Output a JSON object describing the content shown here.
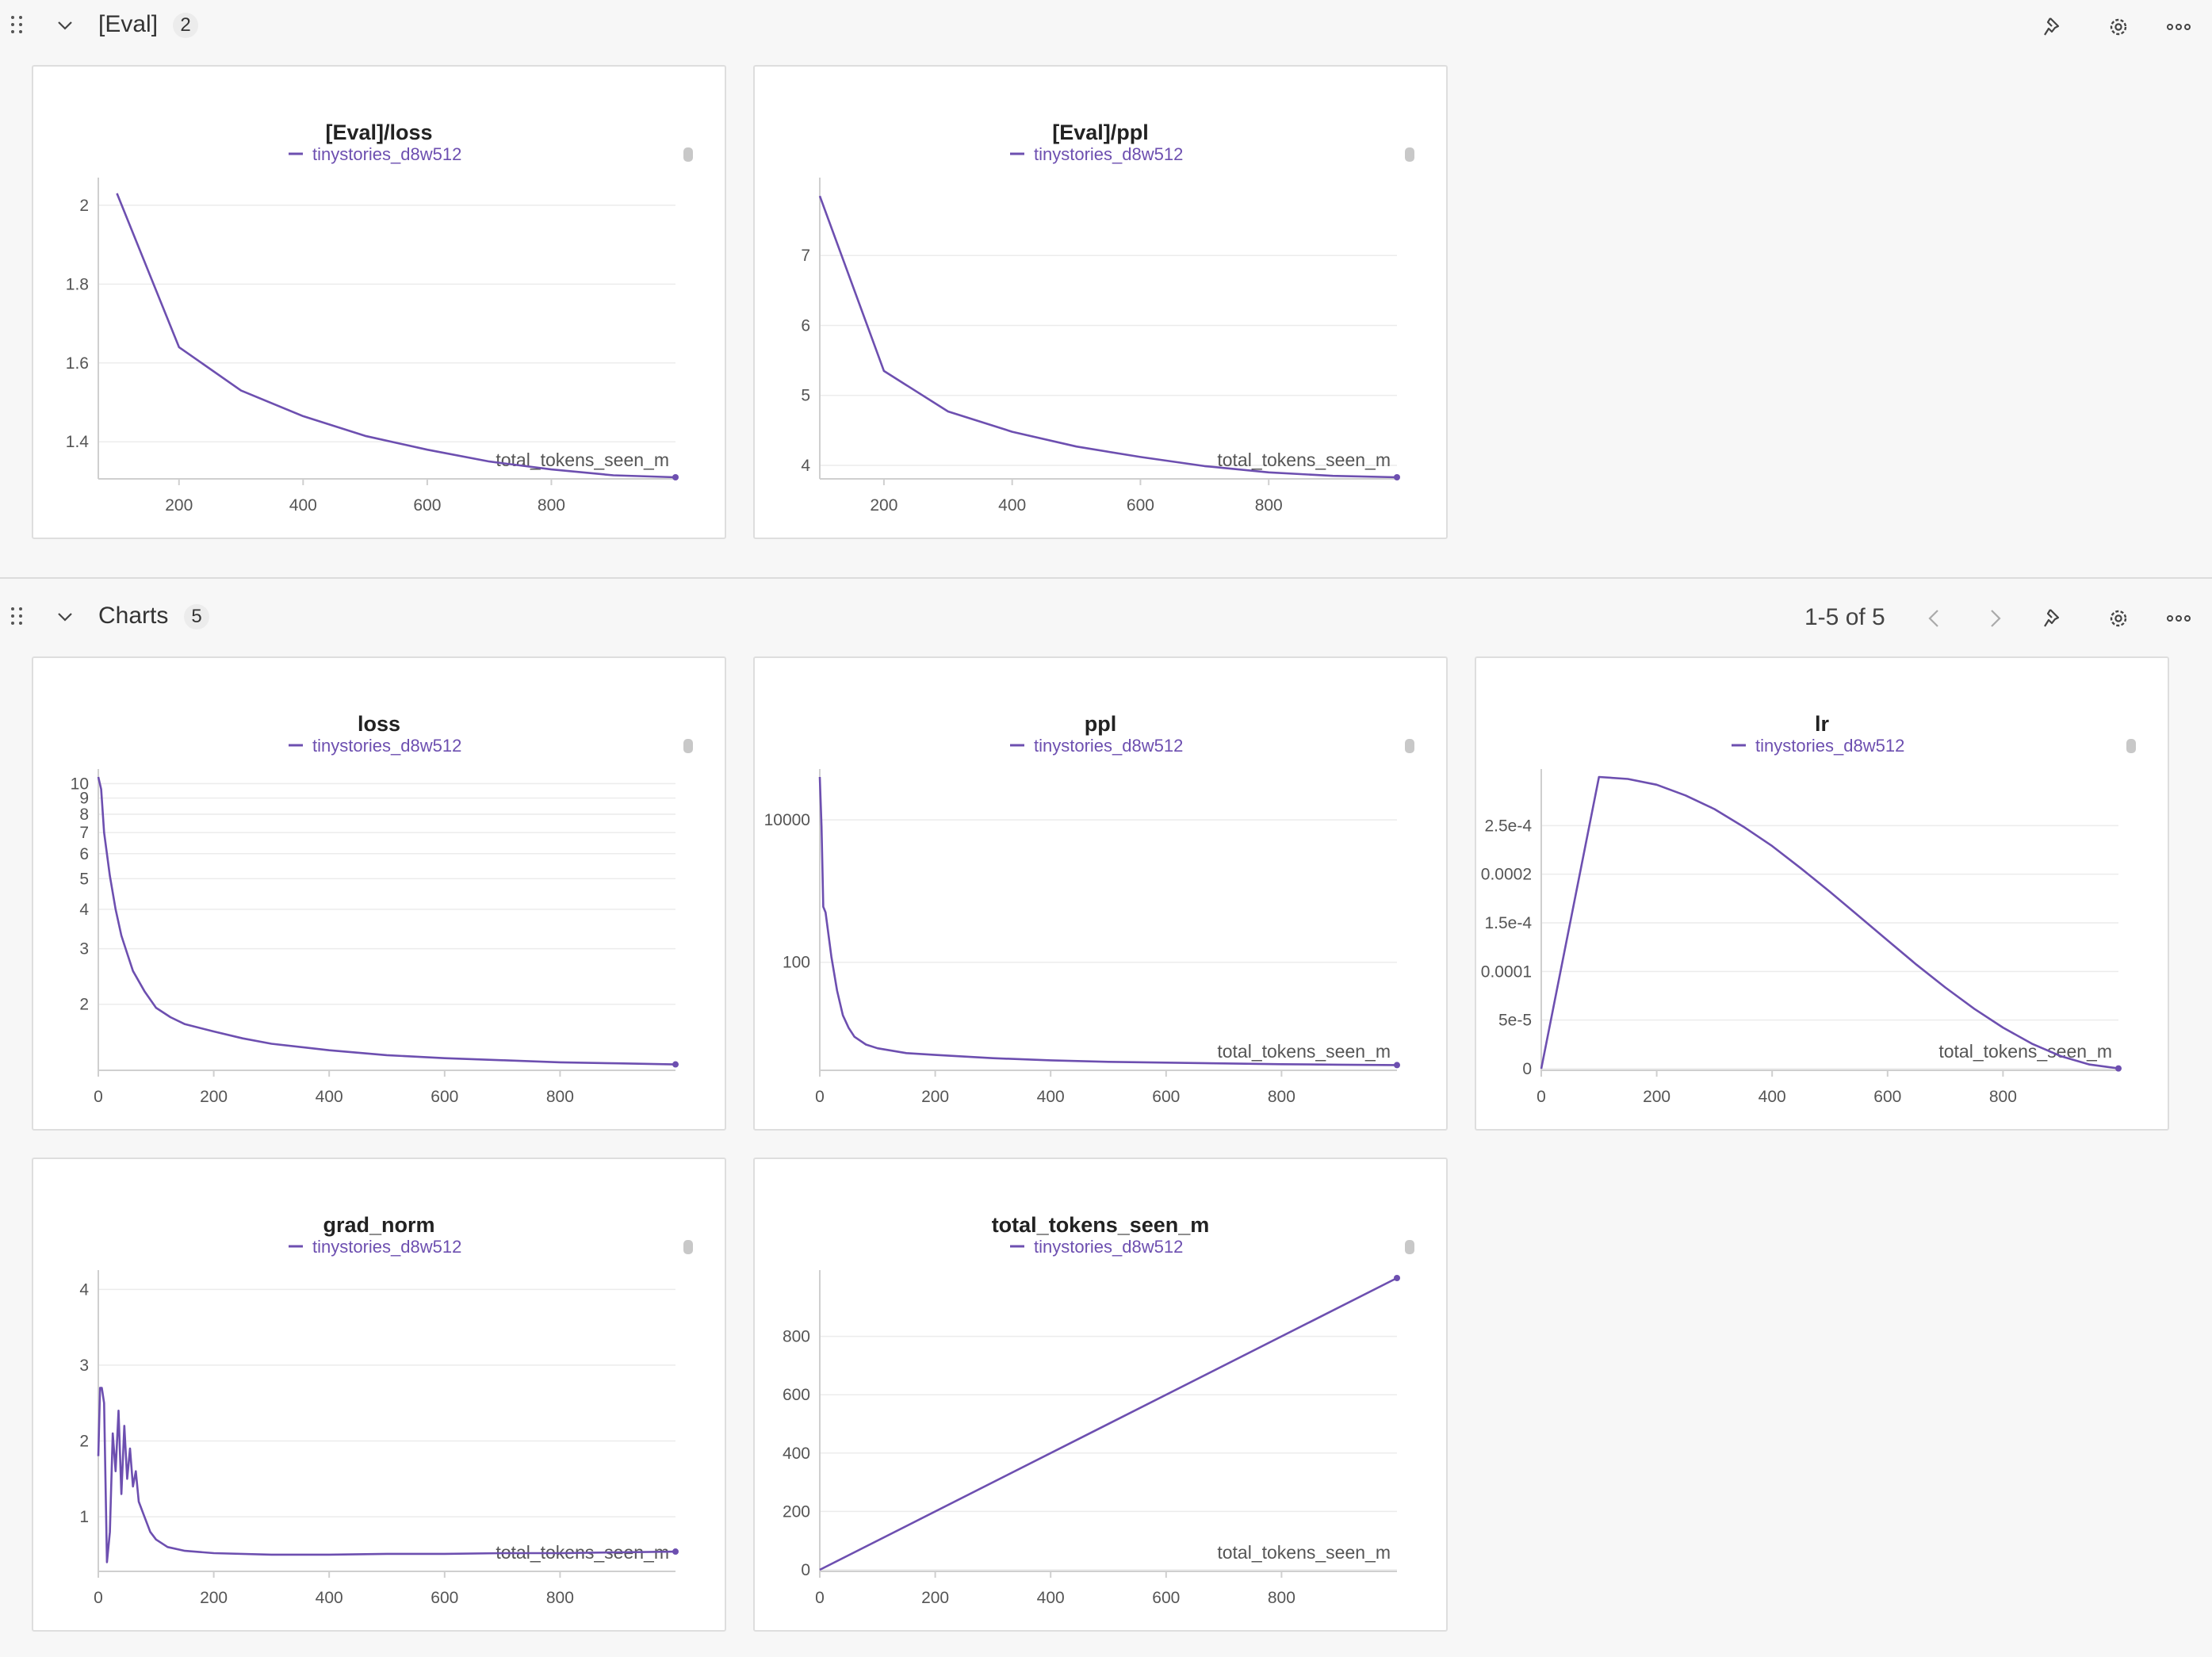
{
  "sections": [
    {
      "title": "[Eval]",
      "count": "2"
    },
    {
      "title": "Charts",
      "count": "5",
      "pager": "1-5 of 5"
    }
  ],
  "legend": "tinystories_d8w512",
  "xlabel": "total_tokens_seen_m",
  "colors": {
    "series": "#6d4fb0",
    "grid": "#ececec",
    "axis": "#cfcfcf"
  },
  "icons": [
    "drag-handle-icon",
    "chevron-down-icon",
    "pin-icon",
    "gear-icon",
    "more-icon",
    "chevron-left-icon",
    "chevron-right-icon"
  ],
  "chart_data": [
    {
      "type": "line",
      "title": "[Eval]/loss",
      "xlabel": "total_tokens_seen_m",
      "ylabel": "",
      "x": [
        100,
        200,
        300,
        400,
        500,
        600,
        700,
        800,
        900,
        1000
      ],
      "series": [
        {
          "name": "tinystories_d8w512",
          "values": [
            2.03,
            1.64,
            1.53,
            1.465,
            1.415,
            1.38,
            1.35,
            1.33,
            1.315,
            1.31
          ]
        }
      ],
      "xlim": [
        70,
        1000
      ],
      "ylim": [
        1.31,
        2.05
      ],
      "xticks": [
        "200",
        "400",
        "600",
        "800"
      ],
      "yticks": [
        "1.4",
        "1.6",
        "1.8",
        "2"
      ]
    },
    {
      "type": "line",
      "title": "[Eval]/ppl",
      "xlabel": "total_tokens_seen_m",
      "ylabel": "",
      "x": [
        100,
        200,
        300,
        400,
        500,
        600,
        700,
        800,
        900,
        1000
      ],
      "series": [
        {
          "name": "tinystories_d8w512",
          "values": [
            7.85,
            5.35,
            4.77,
            4.48,
            4.27,
            4.12,
            3.99,
            3.9,
            3.85,
            3.83
          ]
        }
      ],
      "xlim": [
        100,
        1000
      ],
      "ylim": [
        3.83,
        8.0
      ],
      "xticks": [
        "200",
        "400",
        "600",
        "800"
      ],
      "yticks": [
        "4",
        "5",
        "6",
        "7"
      ]
    },
    {
      "type": "line",
      "title": "loss",
      "xlabel": "",
      "ylabel": "",
      "yscale": "log",
      "x": [
        0,
        5,
        10,
        20,
        30,
        40,
        50,
        60,
        80,
        100,
        125,
        150,
        200,
        250,
        300,
        400,
        500,
        600,
        700,
        800,
        900,
        1000
      ],
      "series": [
        {
          "name": "tinystories_d8w512",
          "values": [
            10.5,
            9.6,
            7.0,
            5.1,
            4.0,
            3.3,
            2.9,
            2.55,
            2.2,
            1.95,
            1.82,
            1.73,
            1.64,
            1.56,
            1.5,
            1.43,
            1.38,
            1.35,
            1.33,
            1.31,
            1.3,
            1.29
          ]
        }
      ],
      "xlim": [
        0,
        1000
      ],
      "ylim": [
        1.25,
        10.5
      ],
      "xticks": [
        "0",
        "200",
        "400",
        "600",
        "800"
      ],
      "yticks": [
        "2",
        "3",
        "4",
        "5",
        "6",
        "7",
        "8",
        "9",
        "10"
      ]
    },
    {
      "type": "line",
      "title": "ppl",
      "xlabel": "total_tokens_seen_m",
      "ylabel": "",
      "yscale": "log",
      "x": [
        0,
        3,
        6,
        10,
        20,
        30,
        40,
        50,
        60,
        80,
        100,
        150,
        200,
        300,
        400,
        500,
        600,
        700,
        800,
        900,
        1000
      ],
      "series": [
        {
          "name": "tinystories_d8w512",
          "values": [
            40000,
            8000,
            600,
            500,
            120,
            40,
            18,
            12,
            9,
            7,
            6.2,
            5.3,
            5.0,
            4.5,
            4.2,
            4.0,
            3.9,
            3.8,
            3.7,
            3.65,
            3.6
          ]
        }
      ],
      "xlim": [
        0,
        1000
      ],
      "ylim": [
        3.2,
        40000
      ],
      "xticks": [
        "0",
        "200",
        "400",
        "600",
        "800"
      ],
      "yticks": [
        "100",
        "10000"
      ]
    },
    {
      "type": "line",
      "title": "lr",
      "xlabel": "total_tokens_seen_m",
      "ylabel": "",
      "x": [
        0,
        100,
        150,
        200,
        250,
        300,
        350,
        400,
        450,
        500,
        550,
        600,
        650,
        700,
        750,
        800,
        850,
        900,
        950,
        1000
      ],
      "series": [
        {
          "name": "tinystories_d8w512",
          "values": [
            0,
            0.0003,
            0.000298,
            0.000292,
            0.000281,
            0.000267,
            0.000249,
            0.000229,
            0.000206,
            0.000182,
            0.000157,
            0.000132,
            0.000107,
            8.36e-05,
            6.17e-05,
            4.23e-05,
            2.58e-05,
            1.3e-05,
            4.3e-06,
            3e-07
          ]
        }
      ],
      "xlim": [
        0,
        1000
      ],
      "ylim": [
        0,
        0.0003
      ],
      "xticks": [
        "0",
        "200",
        "400",
        "600",
        "800"
      ],
      "yticks": [
        "0",
        "5e-5",
        "0.0001",
        "1.5e-4",
        "0.0002",
        "2.5e-4"
      ]
    },
    {
      "type": "line",
      "title": "grad_norm",
      "xlabel": "total_tokens_seen_m",
      "ylabel": "",
      "x": [
        0,
        3,
        6,
        10,
        15,
        20,
        25,
        30,
        35,
        40,
        45,
        50,
        55,
        60,
        65,
        70,
        80,
        90,
        100,
        120,
        150,
        200,
        300,
        400,
        500,
        600,
        700,
        800,
        900,
        1000
      ],
      "series": [
        {
          "name": "tinystories_d8w512",
          "values": [
            1.8,
            2.7,
            2.7,
            2.5,
            0.4,
            0.8,
            2.1,
            1.6,
            2.4,
            1.3,
            2.2,
            1.5,
            1.9,
            1.4,
            1.6,
            1.2,
            1.0,
            0.8,
            0.7,
            0.6,
            0.55,
            0.52,
            0.5,
            0.5,
            0.51,
            0.51,
            0.52,
            0.52,
            0.53,
            0.54
          ]
        }
      ],
      "xlim": [
        0,
        1000
      ],
      "ylim": [
        0.3,
        4.15
      ],
      "xticks": [
        "0",
        "200",
        "400",
        "600",
        "800"
      ],
      "yticks": [
        "1",
        "2",
        "3",
        "4"
      ]
    },
    {
      "type": "line",
      "title": "total_tokens_seen_m",
      "xlabel": "total_tokens_seen_m",
      "ylabel": "",
      "x": [
        0,
        1000
      ],
      "series": [
        {
          "name": "tinystories_d8w512",
          "values": [
            0,
            1000
          ]
        }
      ],
      "xlim": [
        0,
        1000
      ],
      "ylim": [
        0,
        1000
      ],
      "xticks": [
        "0",
        "200",
        "400",
        "600",
        "800"
      ],
      "yticks": [
        "0",
        "200",
        "400",
        "600",
        "800"
      ]
    }
  ]
}
